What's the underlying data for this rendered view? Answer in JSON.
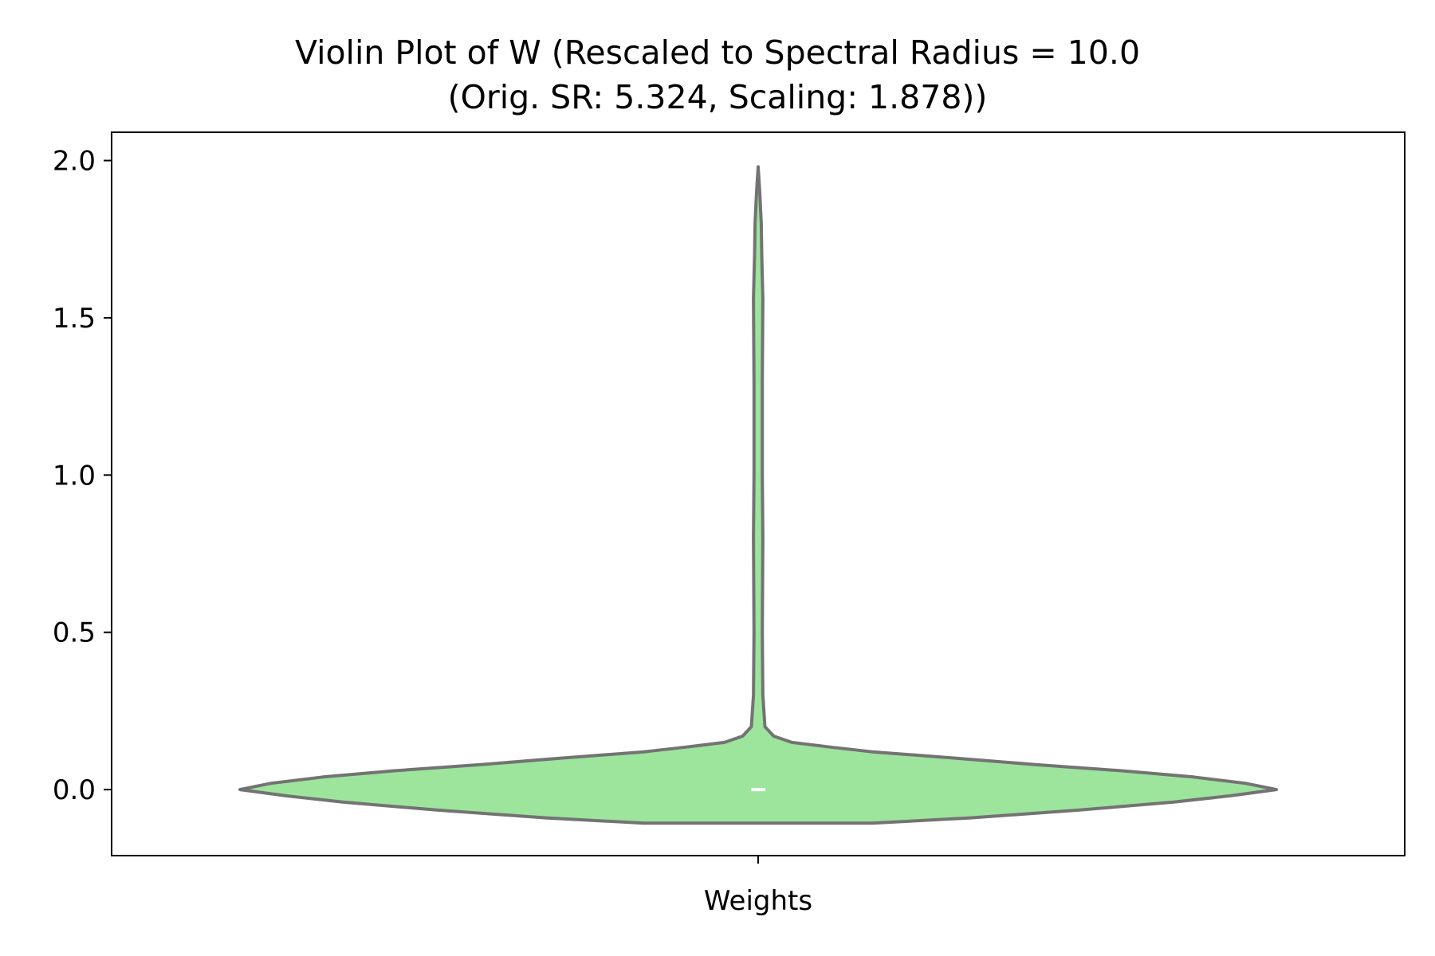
{
  "chart_data": {
    "type": "violin",
    "title": [
      "Violin Plot of W (Rescaled to Spectral Radius = 10.0",
      "(Orig. SR: 5.324, Scaling: 1.878))"
    ],
    "xlabel": "",
    "ylabel": "",
    "categories": [
      "Weights"
    ],
    "ylim": [
      -0.21,
      2.09
    ],
    "yticks": [
      0.0,
      0.5,
      1.0,
      1.5,
      2.0
    ],
    "ytick_labels": [
      "0.0",
      "0.5",
      "1.0",
      "1.5",
      "2.0"
    ],
    "grid": false,
    "legend": "none",
    "fill_color": "#9de49d",
    "edge_color": "#737373",
    "median_color": "#ffffff",
    "series": [
      {
        "category": "Weights",
        "median": 0.0,
        "data_min": -0.107,
        "data_max": 1.98,
        "density_profile": [
          [
            -0.107,
            0.22
          ],
          [
            -0.09,
            0.41
          ],
          [
            -0.065,
            0.62
          ],
          [
            -0.04,
            0.8
          ],
          [
            -0.02,
            0.91
          ],
          [
            0.0,
            1.0
          ],
          [
            0.02,
            0.94
          ],
          [
            0.04,
            0.84
          ],
          [
            0.06,
            0.7
          ],
          [
            0.08,
            0.53
          ],
          [
            0.1,
            0.38
          ],
          [
            0.12,
            0.22
          ],
          [
            0.135,
            0.14
          ],
          [
            0.15,
            0.065
          ],
          [
            0.17,
            0.03
          ],
          [
            0.2,
            0.013
          ],
          [
            0.3,
            0.009
          ],
          [
            0.5,
            0.008
          ],
          [
            0.8,
            0.009
          ],
          [
            1.0,
            0.008
          ],
          [
            1.3,
            0.008
          ],
          [
            1.56,
            0.009
          ],
          [
            1.7,
            0.007
          ],
          [
            1.8,
            0.006
          ],
          [
            1.9,
            0.003
          ],
          [
            1.98,
            0.0
          ]
        ]
      }
    ]
  }
}
